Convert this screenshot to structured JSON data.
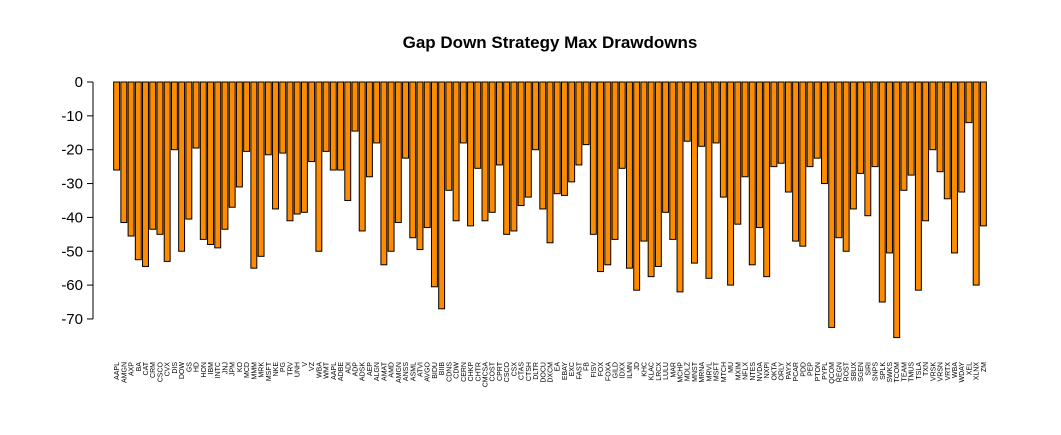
{
  "chart_data": {
    "type": "bar",
    "title": "Gap Down Strategy Max Drawdowns",
    "xlabel": "",
    "ylabel": "",
    "ylim": [
      -75,
      0
    ],
    "yticks": [
      0,
      -10,
      -20,
      -30,
      -40,
      -50,
      -60,
      -70
    ],
    "grid": false,
    "bar_color": "#FF8C00",
    "bar_border_color": "#000000",
    "categories": [
      "AAPL",
      "AMGN",
      "AXP",
      "BA",
      "CAT",
      "CRM",
      "CSCO",
      "CVX",
      "DIS",
      "DOW",
      "GS",
      "HD",
      "HON",
      "IBM",
      "INTC",
      "JNJ",
      "JPM",
      "KO",
      "MCD",
      "MMM",
      "MRK",
      "MSFT",
      "NKE",
      "PG",
      "TRV",
      "UNH",
      "V",
      "VZ",
      "WBA",
      "WMT",
      "AAPL",
      "ADBE",
      "ADI",
      "ADP",
      "ADSK",
      "AEP",
      "ALGN",
      "AMAT",
      "AMD",
      "AMGN",
      "ANSS",
      "ASML",
      "ATVI",
      "AVGO",
      "BIDU",
      "BIIB",
      "CDNS",
      "CDW",
      "CERN",
      "CHKP",
      "CHTR",
      "CMCSA",
      "COST",
      "CPRT",
      "CSCO",
      "CSX",
      "CTAS",
      "CTSH",
      "DLTR",
      "DOCU",
      "DXCM",
      "EA",
      "EBAY",
      "EXC",
      "FAST",
      "FB",
      "FISV",
      "FOX",
      "FOXA",
      "GILD",
      "IDXX",
      "ILMN",
      "JD",
      "KHC",
      "KLAC",
      "LRCX",
      "LULU",
      "MAR",
      "MCHP",
      "MDLZ",
      "MNST",
      "MRNA",
      "MRVL",
      "MSFT",
      "MTCH",
      "MU",
      "MXIM",
      "NFLX",
      "NTES",
      "NVDA",
      "NXPI",
      "OKTA",
      "ORLY",
      "PAYX",
      "PCAR",
      "PDD",
      "PEP",
      "PTON",
      "PYPL",
      "QCOM",
      "REGN",
      "ROST",
      "SBUX",
      "SGEN",
      "SIRI",
      "SNPS",
      "SPLK",
      "SWKS",
      "TCOM",
      "TEAM",
      "TMUS",
      "TSLA",
      "TXN",
      "VRSK",
      "VRSN",
      "VRTX",
      "WBA",
      "WDAY",
      "XEL",
      "XLNX",
      "ZM"
    ],
    "values": [
      -26,
      -41.5,
      -45.5,
      -52.5,
      -54.5,
      -43.5,
      -45,
      -53,
      -20,
      -50,
      -40.5,
      -19.5,
      -46.5,
      -48,
      -49,
      -43.5,
      -37,
      -31,
      -20.5,
      -55,
      -51.5,
      -21.5,
      -37.5,
      -21,
      -41,
      -39,
      -38.5,
      -23.5,
      -50,
      -20.5,
      -26,
      -26,
      -35,
      -14.5,
      -44,
      -28,
      -18,
      -54,
      -50,
      -41.5,
      -22.5,
      -46,
      -49.5,
      -43,
      -60.5,
      -67,
      -32,
      -41,
      -18,
      -42.5,
      -25.5,
      -41,
      -38.5,
      -24.5,
      -45,
      -44,
      -36.5,
      -34,
      -20,
      -37.5,
      -47.5,
      -33,
      -33.5,
      -29.5,
      -24.5,
      -18.5,
      -45,
      -56,
      -54,
      -46.5,
      -25.5,
      -55,
      -61.5,
      -47,
      -57.5,
      -54.5,
      -38.5,
      -46.5,
      -62,
      -17.5,
      -53.5,
      -19,
      -58,
      -18,
      -34,
      -60,
      -42,
      -28,
      -54,
      -43,
      -57.5,
      -25,
      -24,
      -32.5,
      -47,
      -48.5,
      -25,
      -22.5,
      -30,
      -72.5,
      -46,
      -50,
      -37.5,
      -27,
      -39.5,
      -25,
      -65,
      -50.5,
      -75.5,
      -32,
      -27.5,
      -61.5,
      -41,
      -20,
      -26.5,
      -34.5,
      -50.5,
      -32.5,
      -12,
      -60,
      -42.5
    ]
  }
}
